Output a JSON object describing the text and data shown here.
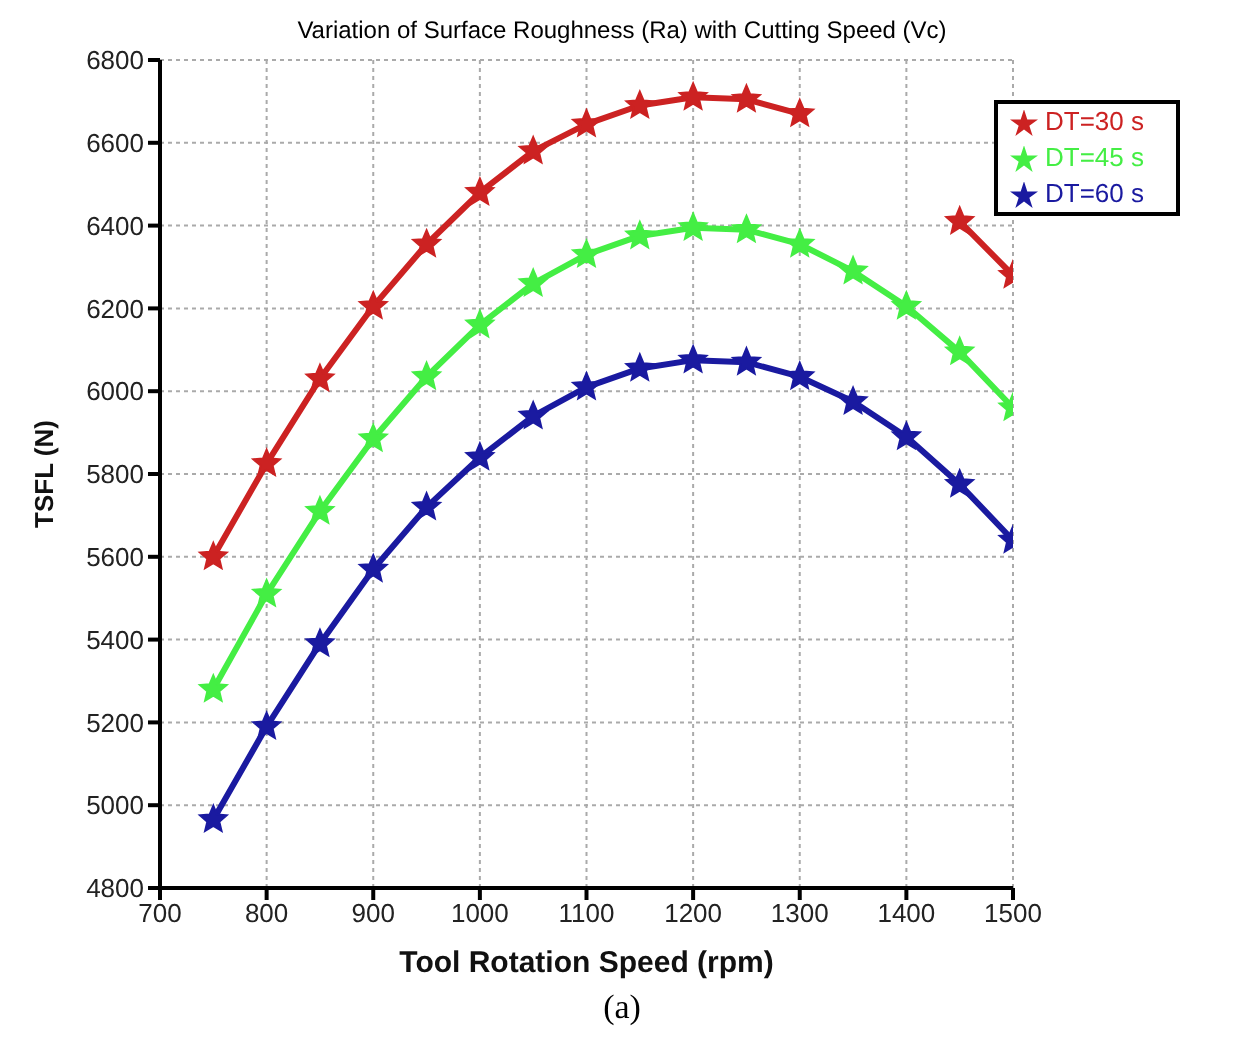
{
  "chart_data": {
    "type": "line",
    "title": "Variation of Surface Roughness (Ra) with Cutting Speed (Vc)",
    "xlabel": "Tool Rotation Speed (rpm)",
    "ylabel": "TSFL (N)",
    "annotations": [
      "(a)"
    ],
    "x": [
      750,
      800,
      850,
      900,
      950,
      1000,
      1050,
      1100,
      1150,
      1200,
      1250,
      1300,
      1350,
      1400,
      1450,
      1500
    ],
    "series": [
      {
        "name": "DT=30 s",
        "color": "#cc2222",
        "values": [
          5600,
          5825,
          6030,
          6205,
          6355,
          6480,
          6580,
          6645,
          6690,
          6710,
          6705,
          6670,
          null,
          null,
          6410,
          6280
        ]
      },
      {
        "name": "DT=45 s",
        "color": "#44ee44",
        "values": [
          5280,
          5510,
          5710,
          5885,
          6035,
          6160,
          6260,
          6330,
          6375,
          6395,
          6390,
          6355,
          6290,
          6205,
          6095,
          5960
        ]
      },
      {
        "name": "DT=60 s",
        "color": "#1a1aa0",
        "values": [
          4965,
          5190,
          5390,
          5570,
          5720,
          5840,
          5940,
          6010,
          6055,
          6075,
          6070,
          6035,
          5975,
          5890,
          5775,
          5640
        ]
      }
    ],
    "xlim": [
      700,
      1500
    ],
    "xticks": [
      700,
      800,
      900,
      1000,
      1100,
      1200,
      1300,
      1400,
      1500
    ],
    "ylim": [
      4800,
      6800
    ],
    "yticks": [
      4800,
      5000,
      5200,
      5400,
      5600,
      5800,
      6000,
      6200,
      6400,
      6600,
      6800
    ],
    "grid": true,
    "legend": "top right",
    "marker": "star",
    "line_style": "solid"
  }
}
